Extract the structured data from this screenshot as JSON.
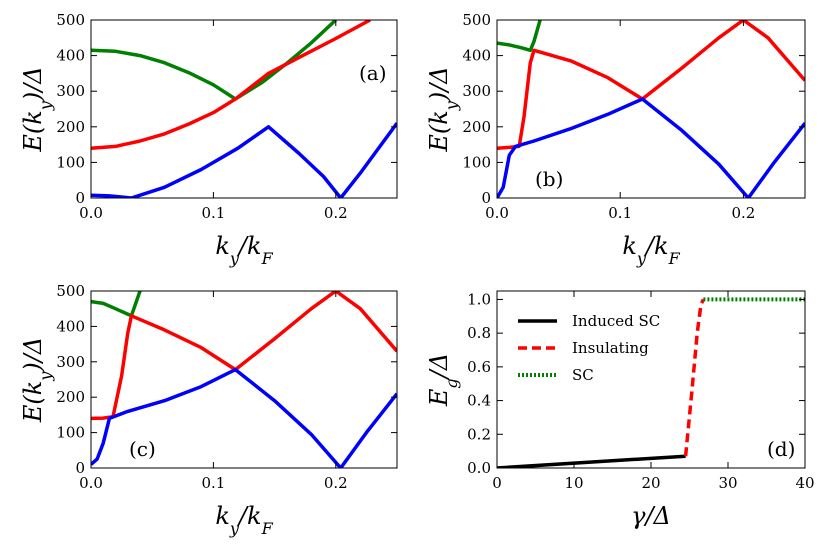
{
  "chart_data": [
    {
      "panel": "a",
      "type": "line",
      "annotation": "(a)",
      "annotation_position": "top-right",
      "xlabel": "k_y/k_F",
      "ylabel": "E(k_y)/Δ",
      "xlim": [
        0,
        0.25
      ],
      "ylim": [
        0,
        500
      ],
      "xticks": [
        "0.0",
        "0.1",
        "0.2"
      ],
      "yticks": [
        "0",
        "100",
        "200",
        "300",
        "400",
        "500"
      ],
      "series": [
        {
          "name": "green",
          "color": "#008000",
          "x": [
            0.0,
            0.02,
            0.04,
            0.06,
            0.08,
            0.1,
            0.118,
            0.14,
            0.16,
            0.18,
            0.2
          ],
          "y": [
            415,
            412,
            400,
            380,
            352,
            318,
            278,
            325,
            378,
            436,
            500
          ]
        },
        {
          "name": "red",
          "color": "#ff0000",
          "x": [
            0.0,
            0.02,
            0.04,
            0.06,
            0.08,
            0.1,
            0.118,
            0.145,
            0.17,
            0.2,
            0.228
          ],
          "y": [
            140,
            145,
            160,
            180,
            208,
            240,
            278,
            350,
            395,
            448,
            500
          ]
        },
        {
          "name": "blue",
          "color": "#0000ff",
          "x": [
            0.0,
            0.015,
            0.033,
            0.06,
            0.09,
            0.12,
            0.145,
            0.17,
            0.19,
            0.204,
            0.22,
            0.25
          ],
          "y": [
            8,
            6,
            0,
            30,
            80,
            140,
            200,
            125,
            60,
            0,
            70,
            210
          ]
        }
      ]
    },
    {
      "panel": "b",
      "type": "line",
      "annotation": "(b)",
      "annotation_position": "bottom-left",
      "xlabel": "k_y/k_F",
      "ylabel": "E(k_y)/Δ",
      "xlim": [
        0,
        0.25
      ],
      "ylim": [
        0,
        500
      ],
      "xticks": [
        "0.0",
        "0.1",
        "0.2"
      ],
      "yticks": [
        "0",
        "100",
        "200",
        "300",
        "400",
        "500"
      ],
      "series": [
        {
          "name": "green",
          "color": "#008000",
          "x": [
            0.0,
            0.01,
            0.02,
            0.027,
            0.03,
            0.035
          ],
          "y": [
            435,
            430,
            422,
            415,
            440,
            500
          ]
        },
        {
          "name": "red",
          "color": "#ff0000",
          "x": [
            0.0,
            0.01,
            0.018,
            0.022,
            0.027,
            0.03,
            0.06,
            0.09,
            0.118,
            0.15,
            0.18,
            0.2,
            0.22,
            0.25
          ],
          "y": [
            140,
            142,
            145,
            230,
            380,
            415,
            385,
            338,
            278,
            365,
            450,
            500,
            450,
            330
          ]
        },
        {
          "name": "blue",
          "color": "#0000ff",
          "x": [
            0.0,
            0.005,
            0.01,
            0.015,
            0.03,
            0.06,
            0.09,
            0.118,
            0.15,
            0.18,
            0.204,
            0.225,
            0.25
          ],
          "y": [
            0,
            30,
            120,
            145,
            160,
            195,
            235,
            278,
            190,
            95,
            0,
            100,
            210
          ]
        }
      ]
    },
    {
      "panel": "c",
      "type": "line",
      "annotation": "(c)",
      "annotation_position": "bottom-left",
      "xlabel": "k_y/k_F",
      "ylabel": "E(k_y)/Δ",
      "xlim": [
        0,
        0.25
      ],
      "ylim": [
        0,
        500
      ],
      "xticks": [
        "0.0",
        "0.1",
        "0.2"
      ],
      "yticks": [
        "0",
        "100",
        "200",
        "300",
        "400",
        "500"
      ],
      "series": [
        {
          "name": "green",
          "color": "#008000",
          "x": [
            0.0,
            0.01,
            0.02,
            0.033,
            0.036,
            0.04
          ],
          "y": [
            470,
            465,
            450,
            430,
            460,
            500
          ]
        },
        {
          "name": "red",
          "color": "#ff0000",
          "x": [
            0.0,
            0.01,
            0.018,
            0.025,
            0.03,
            0.033,
            0.06,
            0.09,
            0.118,
            0.15,
            0.18,
            0.2,
            0.22,
            0.25
          ],
          "y": [
            140,
            141,
            145,
            260,
            380,
            430,
            390,
            340,
            278,
            365,
            450,
            500,
            450,
            330
          ]
        },
        {
          "name": "blue",
          "color": "#0000ff",
          "x": [
            0.0,
            0.005,
            0.01,
            0.015,
            0.03,
            0.06,
            0.09,
            0.118,
            0.15,
            0.18,
            0.204,
            0.225,
            0.25
          ],
          "y": [
            10,
            25,
            70,
            140,
            160,
            190,
            230,
            278,
            190,
            95,
            0,
            100,
            210
          ]
        }
      ]
    },
    {
      "panel": "d",
      "type": "line",
      "annotation": "(d)",
      "annotation_position": "bottom-right",
      "xlabel": "γ/Δ",
      "ylabel": "E_g/Δ",
      "xlim": [
        0,
        40
      ],
      "ylim": [
        0,
        1.05
      ],
      "xticks": [
        "0",
        "10",
        "20",
        "30",
        "40"
      ],
      "yticks": [
        "0.0",
        "0.2",
        "0.4",
        "0.6",
        "0.8",
        "1.0"
      ],
      "legend_position": "top-left",
      "series": [
        {
          "name": "Induced SC",
          "color": "#000000",
          "dash": "solid",
          "x": [
            0,
            24.5
          ],
          "y": [
            0.0,
            0.07
          ]
        },
        {
          "name": "Insulating",
          "color": "#ff0000",
          "dash": "dashed",
          "x": [
            24.5,
            25.3,
            26.0,
            26.5,
            26.8
          ],
          "y": [
            0.07,
            0.45,
            0.8,
            0.97,
            1.0
          ]
        },
        {
          "name": "SC",
          "color": "#008000",
          "dash": "dotted",
          "x": [
            26.8,
            40
          ],
          "y": [
            1.0,
            1.0
          ]
        }
      ]
    }
  ]
}
